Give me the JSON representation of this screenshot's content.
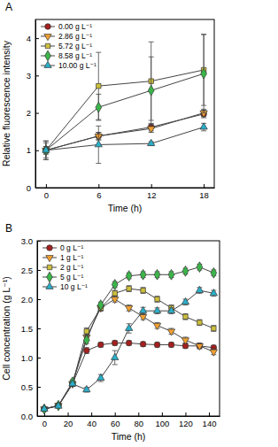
{
  "chart_data": [
    {
      "type": "line",
      "title": "A",
      "x_label": "Time (h)",
      "y_label": "Relative fluorescence intensity",
      "x": [
        0,
        6,
        12,
        18
      ],
      "xlim": [
        -1.2,
        19.2
      ],
      "xticks": [
        0,
        6,
        12,
        18
      ],
      "ylim": [
        0,
        4.5
      ],
      "yticks": [
        0,
        1,
        2,
        3,
        4
      ],
      "legend": "upper left",
      "series": [
        {
          "name": "0.00 g L⁻¹",
          "color": "#a3201f",
          "marker": "circle",
          "values": [
            1.0,
            1.38,
            1.62,
            1.97
          ],
          "errors": [
            0.1,
            0.1,
            0.1,
            0.1
          ]
        },
        {
          "name": "2.86 g L⁻¹",
          "color": "#f0a030",
          "marker": "triangle-down",
          "values": [
            1.0,
            1.38,
            1.58,
            2.0
          ],
          "errors": [
            0.1,
            0.1,
            0.1,
            0.1
          ]
        },
        {
          "name": "5.72 g L⁻¹",
          "color": "#cdbf3c",
          "marker": "square",
          "values": [
            1.0,
            2.72,
            2.85,
            3.15
          ],
          "errors": [
            0.25,
            0.9,
            1.05,
            0.95
          ]
        },
        {
          "name": "8.58 g L⁻¹",
          "color": "#3bb54a",
          "marker": "diamond",
          "values": [
            1.0,
            2.15,
            2.6,
            3.05
          ],
          "errors": [
            0.2,
            0.35,
            0.9,
            1.05
          ]
        },
        {
          "name": "10.00 g L⁻¹",
          "color": "#2aaec8",
          "marker": "triangle-up",
          "values": [
            1.0,
            1.15,
            1.18,
            1.62
          ],
          "errors": [
            0.25,
            0.5,
            0.05,
            0.1
          ]
        }
      ]
    },
    {
      "type": "line",
      "title": "B",
      "x_label": "Time (h)",
      "y_label": "Cell concentration (g L⁻¹)",
      "x": [
        0,
        12,
        24,
        36,
        48,
        60,
        72,
        84,
        96,
        108,
        120,
        132,
        144
      ],
      "xlim": [
        -6,
        149
      ],
      "xticks": [
        0,
        20,
        40,
        60,
        80,
        100,
        120,
        140
      ],
      "ylim": [
        0,
        3.0
      ],
      "yticks": [
        {
          "value": 0,
          "label": "0.0"
        },
        0.5,
        {
          "value": 1,
          "label": "1.0"
        },
        1.5,
        {
          "value": 2,
          "label": "2.0"
        },
        2.5,
        {
          "value": 3,
          "label": "3.0"
        }
      ],
      "legend": "upper left",
      "series": [
        {
          "name": "0 g L⁻¹",
          "color": "#a3201f",
          "marker": "circle",
          "values": [
            0.12,
            0.18,
            0.55,
            1.12,
            1.22,
            1.25,
            1.25,
            1.23,
            1.22,
            1.22,
            1.2,
            1.2,
            1.17
          ],
          "errors": [
            0.02,
            0.02,
            0.04,
            0.05,
            0.04,
            0.04,
            0.04,
            0.04,
            0.04,
            0.04,
            0.04,
            0.04,
            0.04
          ]
        },
        {
          "name": "1 g L⁻¹",
          "color": "#f0a030",
          "marker": "triangle-down",
          "values": [
            0.12,
            0.18,
            0.55,
            1.35,
            1.85,
            2.0,
            1.85,
            1.7,
            1.55,
            1.45,
            1.3,
            1.2,
            1.1
          ],
          "errors": [
            0.02,
            0.02,
            0.04,
            0.06,
            0.05,
            0.05,
            0.05,
            0.05,
            0.05,
            0.05,
            0.05,
            0.05,
            0.05
          ]
        },
        {
          "name": "2 g L⁻¹",
          "color": "#cdbf3c",
          "marker": "square",
          "values": [
            0.12,
            0.18,
            0.55,
            1.45,
            1.85,
            2.1,
            2.18,
            2.15,
            2.0,
            1.85,
            1.7,
            1.6,
            1.5
          ],
          "errors": [
            0.02,
            0.02,
            0.04,
            0.06,
            0.05,
            0.05,
            0.05,
            0.05,
            0.05,
            0.05,
            0.05,
            0.05,
            0.05
          ]
        },
        {
          "name": "5 g L⁻¹",
          "color": "#3bb54a",
          "marker": "diamond",
          "values": [
            0.12,
            0.18,
            0.58,
            1.3,
            1.9,
            2.25,
            2.4,
            2.42,
            2.42,
            2.42,
            2.48,
            2.55,
            2.45
          ],
          "errors": [
            0.02,
            0.02,
            0.04,
            0.06,
            0.05,
            0.05,
            0.05,
            0.05,
            0.05,
            0.05,
            0.05,
            0.05,
            0.05
          ]
        },
        {
          "name": "10 g L⁻¹",
          "color": "#2aaec8",
          "marker": "triangle-up",
          "values": [
            0.12,
            0.17,
            0.55,
            0.45,
            0.65,
            1.0,
            1.5,
            1.8,
            1.8,
            1.8,
            1.95,
            2.15,
            2.1
          ],
          "errors": [
            0.02,
            0.02,
            0.04,
            0.04,
            0.06,
            0.12,
            0.08,
            0.06,
            0.05,
            0.05,
            0.05,
            0.05,
            0.05
          ]
        }
      ]
    }
  ]
}
